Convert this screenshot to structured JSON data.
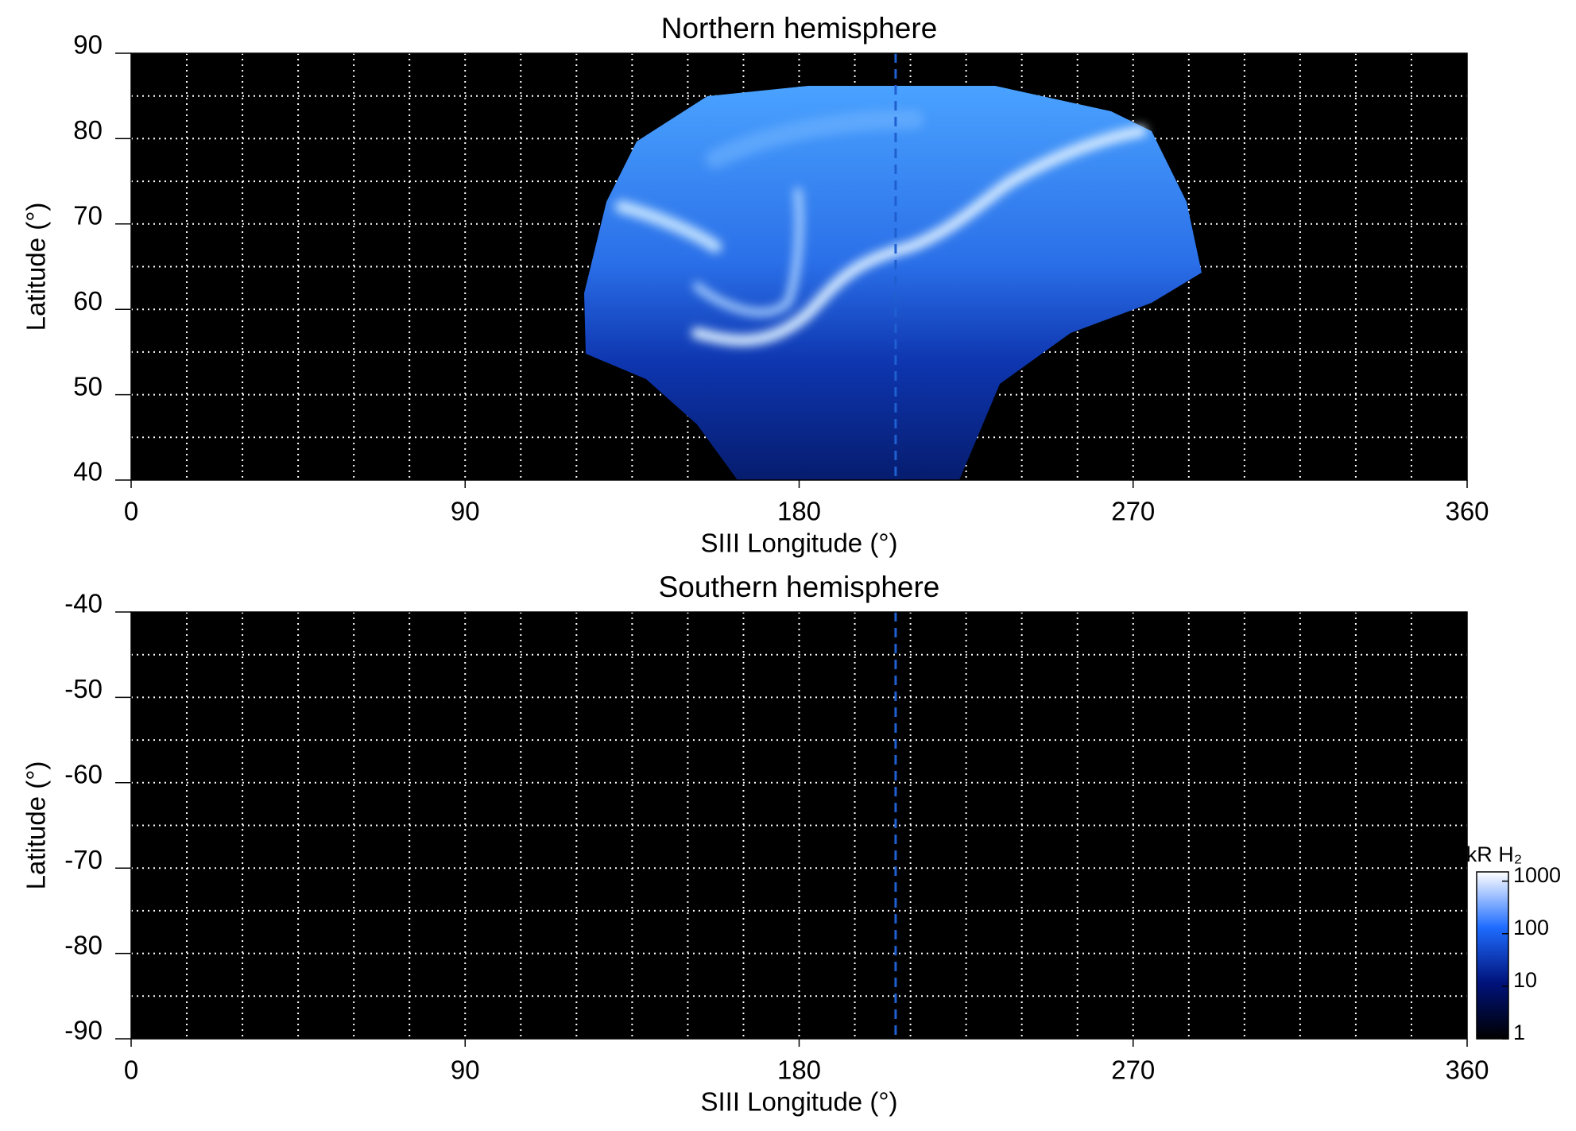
{
  "chart_data": [
    {
      "type": "map",
      "title": "Northern hemisphere",
      "x_label": "SIII Longitude (°)",
      "y_label": "Latitude (°)",
      "xlim": [
        0,
        360
      ],
      "ylim": [
        40,
        90
      ],
      "xticks": [
        0,
        90,
        180,
        270,
        360
      ],
      "yticks": [
        40,
        50,
        60,
        70,
        80,
        90
      ],
      "x_gridlines": [
        15,
        30,
        45,
        60,
        75,
        90,
        105,
        120,
        135,
        150,
        165,
        180,
        195,
        210,
        225,
        240,
        255,
        270,
        285,
        300,
        315,
        330,
        345
      ],
      "y_gridlines": [
        45,
        50,
        55,
        60,
        65,
        70,
        75,
        80,
        85
      ],
      "grid": true,
      "background": "#000000",
      "reference_line": {
        "x": 206,
        "color": "#1f5fd0"
      }
    },
    {
      "type": "map",
      "title": "Southern hemisphere",
      "x_label": "SIII Longitude (°)",
      "y_label": "Latitude (°)",
      "xlim": [
        0,
        360
      ],
      "ylim": [
        -90,
        -40
      ],
      "xticks": [
        0,
        90,
        180,
        270,
        360
      ],
      "yticks": [
        -90,
        -80,
        -70,
        -60,
        -50,
        -40
      ],
      "x_gridlines": [
        15,
        30,
        45,
        60,
        75,
        90,
        105,
        120,
        135,
        150,
        165,
        180,
        195,
        210,
        225,
        240,
        255,
        270,
        285,
        300,
        315,
        330,
        345
      ],
      "y_gridlines": [
        -85,
        -80,
        -75,
        -70,
        -65,
        -60,
        -55,
        -50,
        -45
      ],
      "grid": true,
      "background": "#000000",
      "reference_line": {
        "x": 206,
        "color": "#1f5fd0"
      },
      "colorbar": {
        "label": "kR H₂",
        "log_scale": true,
        "lim": [
          1,
          1500
        ],
        "ticks": [
          1,
          10,
          100,
          1000
        ],
        "colors": [
          "#000000",
          "#00127a",
          "#1e6cff",
          "#ffffff"
        ]
      }
    }
  ]
}
